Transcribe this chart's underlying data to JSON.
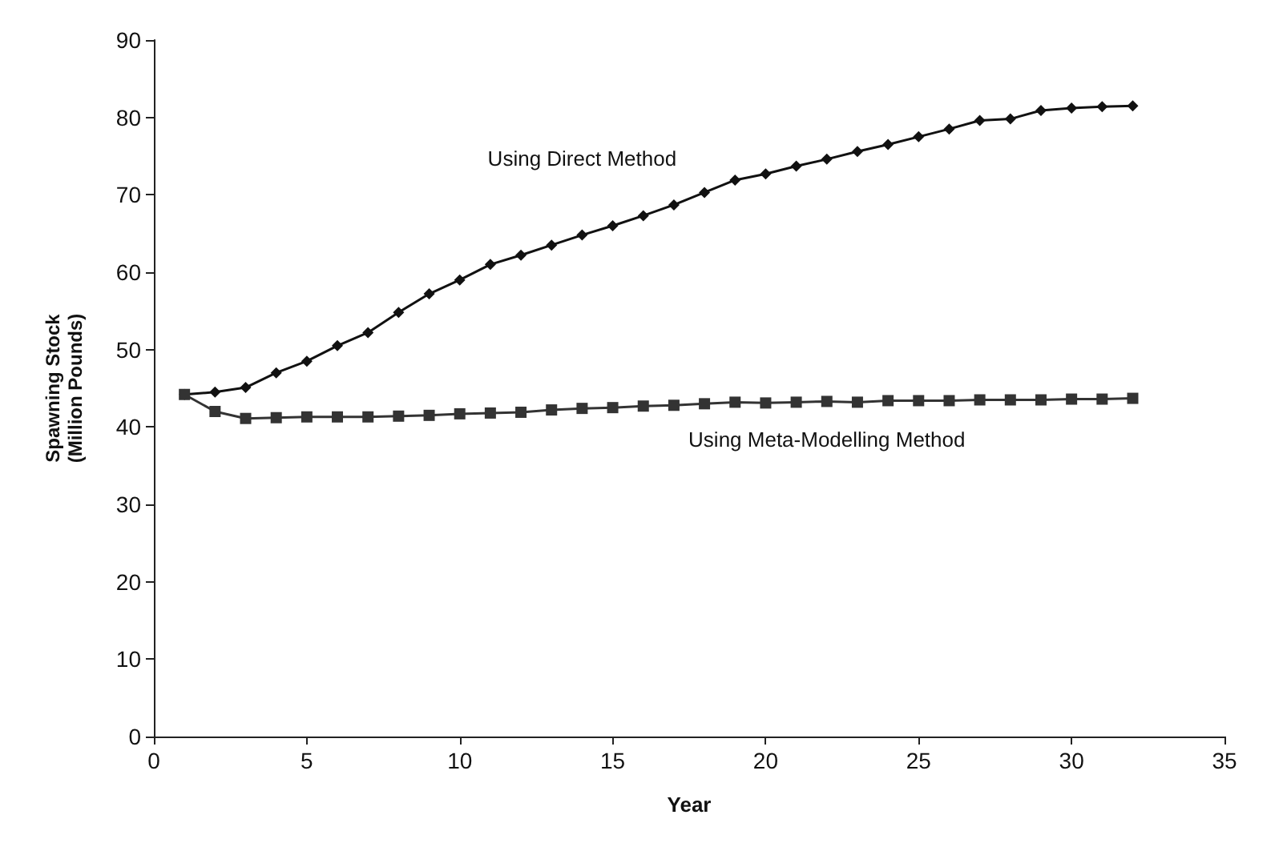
{
  "chart_data": {
    "type": "line",
    "xlabel": "Year",
    "ylabel": "Spawning Stock\n(Million Pounds)",
    "x": [
      1,
      2,
      3,
      4,
      5,
      6,
      7,
      8,
      9,
      10,
      11,
      12,
      13,
      14,
      15,
      16,
      17,
      18,
      19,
      20,
      21,
      22,
      23,
      24,
      25,
      26,
      27,
      28,
      29,
      30,
      31,
      32
    ],
    "series": [
      {
        "name": "Using Direct Method",
        "color": "#111111",
        "marker": "diamond",
        "values": [
          44.2,
          44.5,
          45.1,
          47,
          48.5,
          50.5,
          52.2,
          54.8,
          57.2,
          59,
          61,
          62.2,
          63.5,
          64.8,
          66,
          67.3,
          68.7,
          70.3,
          71.9,
          72.7,
          73.7,
          74.6,
          75.6,
          76.5,
          77.5,
          78.5,
          79.6,
          79.8,
          80.9,
          81.2,
          81.4,
          81.5
        ]
      },
      {
        "name": "Using Meta-Modelling Method",
        "color": "#333333",
        "marker": "square",
        "values": [
          44.2,
          42,
          41.1,
          41.2,
          41.3,
          41.3,
          41.3,
          41.4,
          41.5,
          41.7,
          41.8,
          41.9,
          42.2,
          42.4,
          42.5,
          42.7,
          42.8,
          43,
          43.2,
          43.1,
          43.2,
          43.3,
          43.2,
          43.4,
          43.4,
          43.4,
          43.5,
          43.5,
          43.5,
          43.6,
          43.6,
          43.7
        ]
      }
    ],
    "xlim": [
      0,
      35
    ],
    "xticks": [
      0,
      5,
      10,
      15,
      20,
      25,
      30,
      35
    ],
    "ylim": [
      0,
      90
    ],
    "yticks": [
      0,
      10,
      20,
      30,
      40,
      50,
      60,
      70,
      80,
      90
    ],
    "grid": false,
    "legend": false,
    "line_style": "solid"
  }
}
